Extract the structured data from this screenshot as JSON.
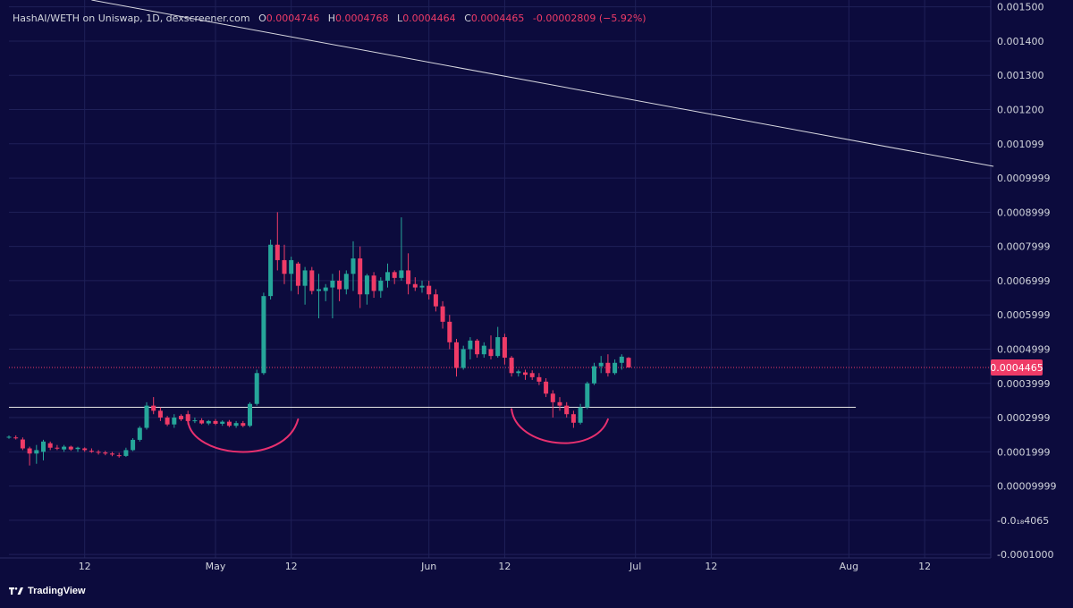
{
  "header": {
    "symbol": "HashAI/WETH on Uniswap, 1D, dexscreener.com",
    "o_label": "O",
    "open": "0.0004746",
    "h_label": "H",
    "high": "0.0004768",
    "l_label": "L",
    "low": "0.0004464",
    "c_label": "C",
    "close": "0.0004465",
    "change": "-0.00002809 (−5.92%)"
  },
  "brand": {
    "name": "TradingView"
  },
  "colors": {
    "background": "#0c0b3d",
    "up": "#26a69a",
    "down": "#ef3b67",
    "grid": "#1f2058",
    "support_line": "#e6e6e6",
    "trend_line": "#d8d8e0",
    "annotation": "#e8306f",
    "price_line": "#ef3b67"
  },
  "chart_data": {
    "type": "candlestick",
    "title": "HashAI/WETH on Uniswap, 1D, dexscreener.com",
    "y_ticks": [
      "0.001500",
      "0.001400",
      "0.001300",
      "0.001200",
      "0.001099",
      "0.0009999",
      "0.0008999",
      "0.0007999",
      "0.0006999",
      "0.0005999",
      "0.0004999",
      "0.0003999",
      "0.0002999",
      "0.0001999",
      "0.00009999",
      "-0.0₁₈4065",
      "-0.0001000"
    ],
    "y_tick_values": [
      0.0015,
      0.0014,
      0.0013,
      0.0012,
      0.0011,
      0.001,
      0.0009,
      0.0008,
      0.0007,
      0.0006,
      0.0005,
      0.0004,
      0.0003,
      0.0002,
      0.0001,
      0.0,
      -0.0001
    ],
    "ylim": [
      -0.00011,
      0.00152
    ],
    "x_ticks": [
      "12",
      "May",
      "12",
      "Jun",
      "12",
      "Jul",
      "12",
      "Aug",
      "12"
    ],
    "x_tick_dates": [
      "2024-04-12",
      "2024-05-01",
      "2024-05-12",
      "2024-06-01",
      "2024-06-12",
      "2024-07-01",
      "2024-07-12",
      "2024-08-01",
      "2024-08-12"
    ],
    "last_price": "0.0004465",
    "last_price_value": 0.0004465,
    "support_level": 0.00033,
    "trend_line": {
      "from": [
        "2024-04-13",
        0.00152
      ],
      "to": [
        "2024-08-22",
        0.001034
      ]
    },
    "arcs": [
      {
        "from": [
          "2024-04-27",
          0.00029
        ],
        "to": [
          "2024-05-13",
          0.000295
        ],
        "bottom": 0.000195
      },
      {
        "from": [
          "2024-06-13",
          0.000325
        ],
        "to": [
          "2024-06-27",
          0.000295
        ],
        "bottom": 0.000225
      }
    ],
    "candles": [
      {
        "date": "2024-04-01",
        "o": 0.000242,
        "h": 0.000248,
        "l": 0.000238,
        "c": 0.000244
      },
      {
        "date": "2024-04-02",
        "o": 0.000242,
        "h": 0.000248,
        "l": 0.000236,
        "c": 0.00024
      },
      {
        "date": "2024-04-03",
        "o": 0.000236,
        "h": 0.000242,
        "l": 0.000205,
        "c": 0.00021
      },
      {
        "date": "2024-04-04",
        "o": 0.00021,
        "h": 0.000215,
        "l": 0.00016,
        "c": 0.000195
      },
      {
        "date": "2024-04-05",
        "o": 0.000195,
        "h": 0.00022,
        "l": 0.000165,
        "c": 0.000205
      },
      {
        "date": "2024-04-06",
        "o": 0.0002,
        "h": 0.000235,
        "l": 0.000175,
        "c": 0.00023
      },
      {
        "date": "2024-04-07",
        "o": 0.000225,
        "h": 0.00023,
        "l": 0.000205,
        "c": 0.000212
      },
      {
        "date": "2024-04-08",
        "o": 0.000212,
        "h": 0.00022,
        "l": 0.000205,
        "c": 0.00021
      },
      {
        "date": "2024-04-09",
        "o": 0.000207,
        "h": 0.00022,
        "l": 0.0002,
        "c": 0.000215
      },
      {
        "date": "2024-04-10",
        "o": 0.000215,
        "h": 0.000218,
        "l": 0.000203,
        "c": 0.000207
      },
      {
        "date": "2024-04-11",
        "o": 0.000208,
        "h": 0.000215,
        "l": 0.0002,
        "c": 0.000212
      },
      {
        "date": "2024-04-12",
        "o": 0.00021,
        "h": 0.000213,
        "l": 0.0002,
        "c": 0.000205
      },
      {
        "date": "2024-04-13",
        "o": 0.000203,
        "h": 0.00021,
        "l": 0.000197,
        "c": 0.0002
      },
      {
        "date": "2024-04-14",
        "o": 0.0002,
        "h": 0.000205,
        "l": 0.000192,
        "c": 0.000198
      },
      {
        "date": "2024-04-15",
        "o": 0.000198,
        "h": 0.000203,
        "l": 0.00019,
        "c": 0.000195
      },
      {
        "date": "2024-04-16",
        "o": 0.000195,
        "h": 0.0002,
        "l": 0.000187,
        "c": 0.000192
      },
      {
        "date": "2024-04-17",
        "o": 0.00019,
        "h": 0.000197,
        "l": 0.000183,
        "c": 0.000188
      },
      {
        "date": "2024-04-18",
        "o": 0.000188,
        "h": 0.000212,
        "l": 0.000185,
        "c": 0.000205
      },
      {
        "date": "2024-04-19",
        "o": 0.000205,
        "h": 0.00024,
        "l": 0.000202,
        "c": 0.000235
      },
      {
        "date": "2024-04-20",
        "o": 0.000235,
        "h": 0.000275,
        "l": 0.00023,
        "c": 0.00027
      },
      {
        "date": "2024-04-21",
        "o": 0.00027,
        "h": 0.000345,
        "l": 0.000265,
        "c": 0.000335
      },
      {
        "date": "2024-04-22",
        "o": 0.000335,
        "h": 0.00036,
        "l": 0.00031,
        "c": 0.00032
      },
      {
        "date": "2024-04-23",
        "o": 0.00032,
        "h": 0.00033,
        "l": 0.00029,
        "c": 0.0003
      },
      {
        "date": "2024-04-24",
        "o": 0.0003,
        "h": 0.000305,
        "l": 0.000275,
        "c": 0.00028
      },
      {
        "date": "2024-04-25",
        "o": 0.00028,
        "h": 0.00031,
        "l": 0.00027,
        "c": 0.0003
      },
      {
        "date": "2024-04-26",
        "o": 0.000305,
        "h": 0.00031,
        "l": 0.00029,
        "c": 0.000295
      },
      {
        "date": "2024-04-27",
        "o": 0.00031,
        "h": 0.00032,
        "l": 0.00028,
        "c": 0.00029
      },
      {
        "date": "2024-04-28",
        "o": 0.00029,
        "h": 0.0003,
        "l": 0.000284,
        "c": 0.000292
      },
      {
        "date": "2024-04-29",
        "o": 0.000292,
        "h": 0.000298,
        "l": 0.00028,
        "c": 0.000283
      },
      {
        "date": "2024-04-30",
        "o": 0.000283,
        "h": 0.000293,
        "l": 0.000278,
        "c": 0.00029
      },
      {
        "date": "2024-05-01",
        "o": 0.00029,
        "h": 0.000296,
        "l": 0.000278,
        "c": 0.000282
      },
      {
        "date": "2024-05-02",
        "o": 0.000282,
        "h": 0.000292,
        "l": 0.000276,
        "c": 0.000288
      },
      {
        "date": "2024-05-03",
        "o": 0.000288,
        "h": 0.000293,
        "l": 0.000272,
        "c": 0.000276
      },
      {
        "date": "2024-05-04",
        "o": 0.000276,
        "h": 0.00029,
        "l": 0.00027,
        "c": 0.000284
      },
      {
        "date": "2024-05-05",
        "o": 0.000284,
        "h": 0.00029,
        "l": 0.000272,
        "c": 0.000276
      },
      {
        "date": "2024-05-06",
        "o": 0.000276,
        "h": 0.000345,
        "l": 0.000272,
        "c": 0.00034
      },
      {
        "date": "2024-05-07",
        "o": 0.00034,
        "h": 0.00044,
        "l": 0.000335,
        "c": 0.00043
      },
      {
        "date": "2024-05-08",
        "o": 0.00043,
        "h": 0.000665,
        "l": 0.000425,
        "c": 0.000655
      },
      {
        "date": "2024-05-09",
        "o": 0.000655,
        "h": 0.00082,
        "l": 0.000645,
        "c": 0.000805
      },
      {
        "date": "2024-05-10",
        "o": 0.000805,
        "h": 0.0009,
        "l": 0.00073,
        "c": 0.00076
      },
      {
        "date": "2024-05-11",
        "o": 0.00076,
        "h": 0.000805,
        "l": 0.00069,
        "c": 0.00072
      },
      {
        "date": "2024-05-12",
        "o": 0.00072,
        "h": 0.00077,
        "l": 0.00067,
        "c": 0.00076
      },
      {
        "date": "2024-05-13",
        "o": 0.00075,
        "h": 0.000755,
        "l": 0.00066,
        "c": 0.000685
      },
      {
        "date": "2024-05-14",
        "o": 0.000685,
        "h": 0.00074,
        "l": 0.00063,
        "c": 0.00073
      },
      {
        "date": "2024-05-15",
        "o": 0.00073,
        "h": 0.00074,
        "l": 0.00066,
        "c": 0.00067
      },
      {
        "date": "2024-05-16",
        "o": 0.00067,
        "h": 0.00072,
        "l": 0.00059,
        "c": 0.000675
      },
      {
        "date": "2024-05-17",
        "o": 0.00067,
        "h": 0.00069,
        "l": 0.00064,
        "c": 0.00068
      },
      {
        "date": "2024-05-18",
        "o": 0.00068,
        "h": 0.00072,
        "l": 0.00059,
        "c": 0.0007
      },
      {
        "date": "2024-05-19",
        "o": 0.0007,
        "h": 0.00073,
        "l": 0.00064,
        "c": 0.000675
      },
      {
        "date": "2024-05-20",
        "o": 0.000675,
        "h": 0.00073,
        "l": 0.00066,
        "c": 0.00072
      },
      {
        "date": "2024-05-21",
        "o": 0.00072,
        "h": 0.000815,
        "l": 0.00067,
        "c": 0.000765
      },
      {
        "date": "2024-05-22",
        "o": 0.000765,
        "h": 0.0008,
        "l": 0.00062,
        "c": 0.00066
      },
      {
        "date": "2024-05-23",
        "o": 0.00066,
        "h": 0.00072,
        "l": 0.00063,
        "c": 0.000715
      },
      {
        "date": "2024-05-24",
        "o": 0.000715,
        "h": 0.000725,
        "l": 0.00065,
        "c": 0.00067
      },
      {
        "date": "2024-05-25",
        "o": 0.00067,
        "h": 0.00071,
        "l": 0.00065,
        "c": 0.0007
      },
      {
        "date": "2024-05-26",
        "o": 0.0007,
        "h": 0.00075,
        "l": 0.00068,
        "c": 0.000725
      },
      {
        "date": "2024-05-27",
        "o": 0.000725,
        "h": 0.00073,
        "l": 0.00069,
        "c": 0.000708
      },
      {
        "date": "2024-05-28",
        "o": 0.000708,
        "h": 0.000885,
        "l": 0.0007,
        "c": 0.00073
      },
      {
        "date": "2024-05-29",
        "o": 0.00073,
        "h": 0.00078,
        "l": 0.00066,
        "c": 0.00069
      },
      {
        "date": "2024-05-30",
        "o": 0.00069,
        "h": 0.00071,
        "l": 0.00067,
        "c": 0.00068
      },
      {
        "date": "2024-05-31",
        "o": 0.00068,
        "h": 0.0007,
        "l": 0.000665,
        "c": 0.000685
      },
      {
        "date": "2024-06-01",
        "o": 0.000685,
        "h": 0.0007,
        "l": 0.000645,
        "c": 0.00066
      },
      {
        "date": "2024-06-02",
        "o": 0.00066,
        "h": 0.000675,
        "l": 0.00061,
        "c": 0.000625
      },
      {
        "date": "2024-06-03",
        "o": 0.000625,
        "h": 0.00064,
        "l": 0.00056,
        "c": 0.00058
      },
      {
        "date": "2024-06-04",
        "o": 0.00058,
        "h": 0.0006,
        "l": 0.0005,
        "c": 0.00052
      },
      {
        "date": "2024-06-05",
        "o": 0.00052,
        "h": 0.00053,
        "l": 0.00042,
        "c": 0.000445
      },
      {
        "date": "2024-06-06",
        "o": 0.000445,
        "h": 0.00051,
        "l": 0.00044,
        "c": 0.0005
      },
      {
        "date": "2024-06-07",
        "o": 0.0005,
        "h": 0.000535,
        "l": 0.00047,
        "c": 0.000525
      },
      {
        "date": "2024-06-08",
        "o": 0.000525,
        "h": 0.00053,
        "l": 0.000475,
        "c": 0.000485
      },
      {
        "date": "2024-06-09",
        "o": 0.000485,
        "h": 0.00052,
        "l": 0.000475,
        "c": 0.00051
      },
      {
        "date": "2024-06-10",
        "o": 0.0005,
        "h": 0.00054,
        "l": 0.00047,
        "c": 0.00048
      },
      {
        "date": "2024-06-11",
        "o": 0.00048,
        "h": 0.000565,
        "l": 0.000475,
        "c": 0.000535
      },
      {
        "date": "2024-06-12",
        "o": 0.000535,
        "h": 0.000545,
        "l": 0.000455,
        "c": 0.000475
      },
      {
        "date": "2024-06-13",
        "o": 0.000475,
        "h": 0.00048,
        "l": 0.00042,
        "c": 0.00043
      },
      {
        "date": "2024-06-14",
        "o": 0.00043,
        "h": 0.00044,
        "l": 0.00042,
        "c": 0.000435
      },
      {
        "date": "2024-06-15",
        "o": 0.000432,
        "h": 0.00044,
        "l": 0.00041,
        "c": 0.000425
      },
      {
        "date": "2024-06-16",
        "o": 0.00043,
        "h": 0.000438,
        "l": 0.00041,
        "c": 0.000418
      },
      {
        "date": "2024-06-17",
        "o": 0.000418,
        "h": 0.00043,
        "l": 0.000395,
        "c": 0.000405
      },
      {
        "date": "2024-06-18",
        "o": 0.000405,
        "h": 0.000415,
        "l": 0.00036,
        "c": 0.00037
      },
      {
        "date": "2024-06-19",
        "o": 0.00037,
        "h": 0.00038,
        "l": 0.0003,
        "c": 0.000345
      },
      {
        "date": "2024-06-20",
        "o": 0.000345,
        "h": 0.00036,
        "l": 0.00032,
        "c": 0.000335
      },
      {
        "date": "2024-06-21",
        "o": 0.000335,
        "h": 0.000345,
        "l": 0.0003,
        "c": 0.00031
      },
      {
        "date": "2024-06-22",
        "o": 0.00031,
        "h": 0.00032,
        "l": 0.00027,
        "c": 0.000285
      },
      {
        "date": "2024-06-23",
        "o": 0.000285,
        "h": 0.00034,
        "l": 0.00028,
        "c": 0.00033
      },
      {
        "date": "2024-06-24",
        "o": 0.00033,
        "h": 0.000405,
        "l": 0.000325,
        "c": 0.0004
      },
      {
        "date": "2024-06-25",
        "o": 0.0004,
        "h": 0.00046,
        "l": 0.000395,
        "c": 0.00045
      },
      {
        "date": "2024-06-26",
        "o": 0.00045,
        "h": 0.00048,
        "l": 0.00043,
        "c": 0.00046
      },
      {
        "date": "2024-06-27",
        "o": 0.00046,
        "h": 0.000485,
        "l": 0.00042,
        "c": 0.00043
      },
      {
        "date": "2024-06-28",
        "o": 0.00043,
        "h": 0.00047,
        "l": 0.000425,
        "c": 0.00046
      },
      {
        "date": "2024-06-29",
        "o": 0.00046,
        "h": 0.000485,
        "l": 0.00044,
        "c": 0.000478
      },
      {
        "date": "2024-06-30",
        "o": 0.0004746,
        "h": 0.0004768,
        "l": 0.0004464,
        "c": 0.0004465
      }
    ]
  }
}
